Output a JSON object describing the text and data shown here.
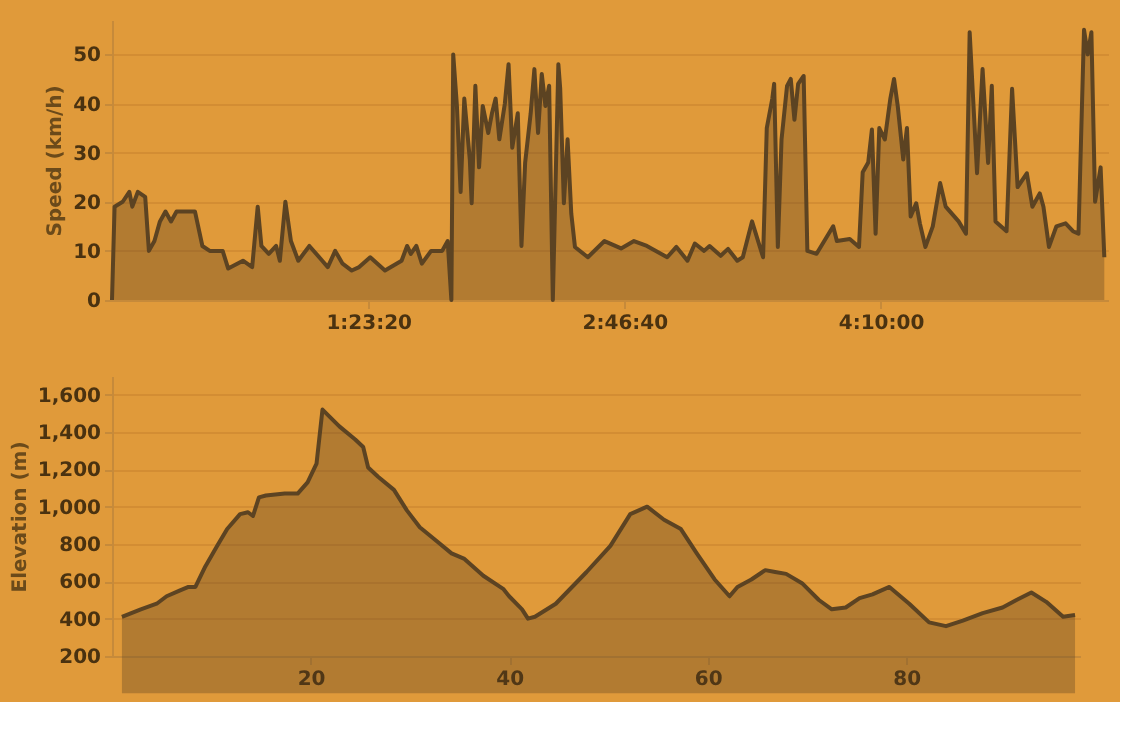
{
  "chart_data": [
    {
      "type": "area",
      "ylabel": "Speed (km/h)",
      "xlim": [
        0,
        5.4
      ],
      "ylim": [
        0,
        57
      ],
      "yticks": [
        0,
        10,
        20,
        30,
        40,
        50
      ],
      "xticks": [
        {
          "value": 1.38889,
          "label": "1:23:20"
        },
        {
          "value": 2.77778,
          "label": "2:46:40"
        },
        {
          "value": 4.16667,
          "label": "4:10:00"
        }
      ],
      "grid": "y",
      "series": [
        {
          "color": "#5c4322",
          "x": [
            0,
            0.014,
            0.058,
            0.094,
            0.11,
            0.14,
            0.18,
            0.2,
            0.23,
            0.26,
            0.29,
            0.32,
            0.35,
            0.38,
            0.42,
            0.45,
            0.49,
            0.53,
            0.6,
            0.63,
            0.71,
            0.76,
            0.79,
            0.81,
            0.85,
            0.89,
            0.91,
            0.94,
            0.97,
            1.01,
            1.07,
            1.14,
            1.17,
            1.21,
            1.25,
            1.3,
            1.34,
            1.4,
            1.48,
            1.57,
            1.6,
            1.62,
            1.65,
            1.68,
            1.73,
            1.79,
            1.82,
            1.84,
            1.85,
            1.87,
            1.89,
            1.91,
            1.94,
            1.95,
            1.97,
            1.99,
            2.01,
            2.04,
            2.06,
            2.08,
            2.1,
            2.13,
            2.15,
            2.17,
            2.2,
            2.22,
            2.24,
            2.27,
            2.29,
            2.31,
            2.33,
            2.35,
            2.37,
            2.39,
            2.42,
            2.43,
            2.45,
            2.47,
            2.49,
            2.51,
            2.58,
            2.67,
            2.76,
            2.83,
            2.9,
            3.01,
            3.06,
            3.12,
            3.16,
            3.21,
            3.24,
            3.3,
            3.34,
            3.39,
            3.42,
            3.47,
            3.53,
            3.55,
            3.58,
            3.59,
            3.61,
            3.63,
            3.66,
            3.68,
            3.7,
            3.72,
            3.75,
            3.77,
            3.82,
            3.91,
            3.93,
            4.0,
            4.05,
            4.07,
            4.1,
            4.12,
            4.14,
            4.16,
            4.19,
            4.22,
            4.24,
            4.26,
            4.29,
            4.31,
            4.33,
            4.36,
            4.38,
            4.41,
            4.45,
            4.49,
            4.52,
            4.59,
            4.63,
            4.65,
            4.69,
            4.72,
            4.75,
            4.77,
            4.79,
            4.85,
            4.88,
            4.91,
            4.96,
            4.99,
            5.03,
            5.05,
            5.08,
            5.12,
            5.17,
            5.21,
            5.24,
            5.27,
            5.29,
            5.31,
            5.33,
            5.36,
            5.38
          ],
          "values": [
            0,
            19,
            20,
            22,
            19,
            22,
            21,
            10,
            12,
            16,
            18,
            16,
            18,
            18,
            18,
            18,
            11,
            10,
            10,
            6.4,
            8,
            6.7,
            19,
            11,
            9.4,
            11,
            8,
            20,
            12,
            8,
            11,
            8,
            6.7,
            10,
            7.4,
            6,
            6.7,
            8.7,
            6,
            8,
            11,
            9.4,
            11,
            7.4,
            10,
            10,
            12,
            0,
            50,
            39.5,
            22,
            41,
            28.6,
            19.7,
            43.6,
            27,
            39.5,
            34,
            38,
            41,
            32.7,
            40,
            48,
            31,
            38,
            11,
            28,
            38,
            47,
            34,
            46,
            39.5,
            43.6,
            0,
            48,
            43,
            19.7,
            32.7,
            17.6,
            10.8,
            8.7,
            12,
            10.5,
            12,
            11,
            8.7,
            10.8,
            8,
            11.5,
            10,
            11,
            9,
            10.4,
            8,
            8.7,
            16,
            8.7,
            35,
            41,
            44,
            10.8,
            32.7,
            43.6,
            45,
            36.7,
            44,
            45.6,
            10,
            9.4,
            15,
            12,
            12.4,
            10.8,
            26,
            28,
            34.7,
            13.5,
            35,
            32.7,
            41,
            45,
            39.5,
            28.6,
            35,
            17,
            19.7,
            15.6,
            10.8,
            15,
            23.8,
            19,
            16,
            13.5,
            54.5,
            25.8,
            47,
            27.9,
            43.6,
            16,
            14,
            43,
            23,
            25.8,
            19,
            21.7,
            19,
            10.8,
            15,
            15.6,
            14,
            13.5,
            55,
            50,
            54.5,
            20,
            27,
            8.7
          ]
        }
      ]
    },
    {
      "type": "area",
      "ylabel": "Elevation (m)",
      "xlim": [
        0,
        97.5
      ],
      "xticks": [
        20,
        40,
        60,
        80
      ],
      "ylim": [
        200,
        1700
      ],
      "yticks": [
        {
          "value": 200,
          "label": "200"
        },
        {
          "value": 400,
          "label": "400"
        },
        {
          "value": 600,
          "label": "600"
        },
        {
          "value": 800,
          "label": "800"
        },
        {
          "value": 1000,
          "label": "1,000"
        },
        {
          "value": 1200,
          "label": "1,200"
        },
        {
          "value": 1400,
          "label": "1,400"
        },
        {
          "value": 1600,
          "label": "1,600"
        }
      ],
      "grid": "y",
      "series": [
        {
          "color": "#5c4322",
          "x": [
            1,
            2.9,
            4.5,
            5.5,
            6.8,
            7.7,
            8.4,
            9.4,
            10.6,
            11.6,
            12.9,
            13.7,
            14.2,
            14.8,
            15.5,
            17.4,
            18.7,
            19.7,
            20.6,
            21.2,
            22.9,
            24.5,
            25.3,
            25.8,
            26.8,
            28.4,
            29.7,
            31,
            32.6,
            34.2,
            35.5,
            37.4,
            39.4,
            40,
            41.3,
            41.9,
            42.6,
            44.7,
            47.8,
            50.2,
            52.2,
            53.9,
            55.6,
            57.3,
            58.9,
            60.7,
            62.2,
            63,
            64.4,
            65.8,
            66.8,
            67.9,
            69.5,
            71.2,
            72.5,
            73.9,
            75.3,
            76.6,
            78.3,
            80.3,
            82.3,
            84,
            85.7,
            87.7,
            89.7,
            91.1,
            92.6,
            94.1,
            95.8,
            97
          ],
          "values": [
            410,
            450,
            480,
            520,
            550,
            570,
            570,
            680,
            790,
            880,
            960,
            970,
            950,
            1050,
            1060,
            1070,
            1070,
            1130,
            1230,
            1520,
            1430,
            1360,
            1320,
            1210,
            1160,
            1090,
            980,
            890,
            820,
            750,
            720,
            630,
            560,
            520,
            450,
            400,
            410,
            480,
            650,
            790,
            960,
            1000,
            930,
            880,
            750,
            610,
            520,
            570,
            610,
            660,
            650,
            640,
            590,
            500,
            450,
            460,
            510,
            530,
            570,
            480,
            380,
            360,
            390,
            430,
            460,
            500,
            540,
            490,
            410,
            420
          ]
        }
      ]
    }
  ]
}
